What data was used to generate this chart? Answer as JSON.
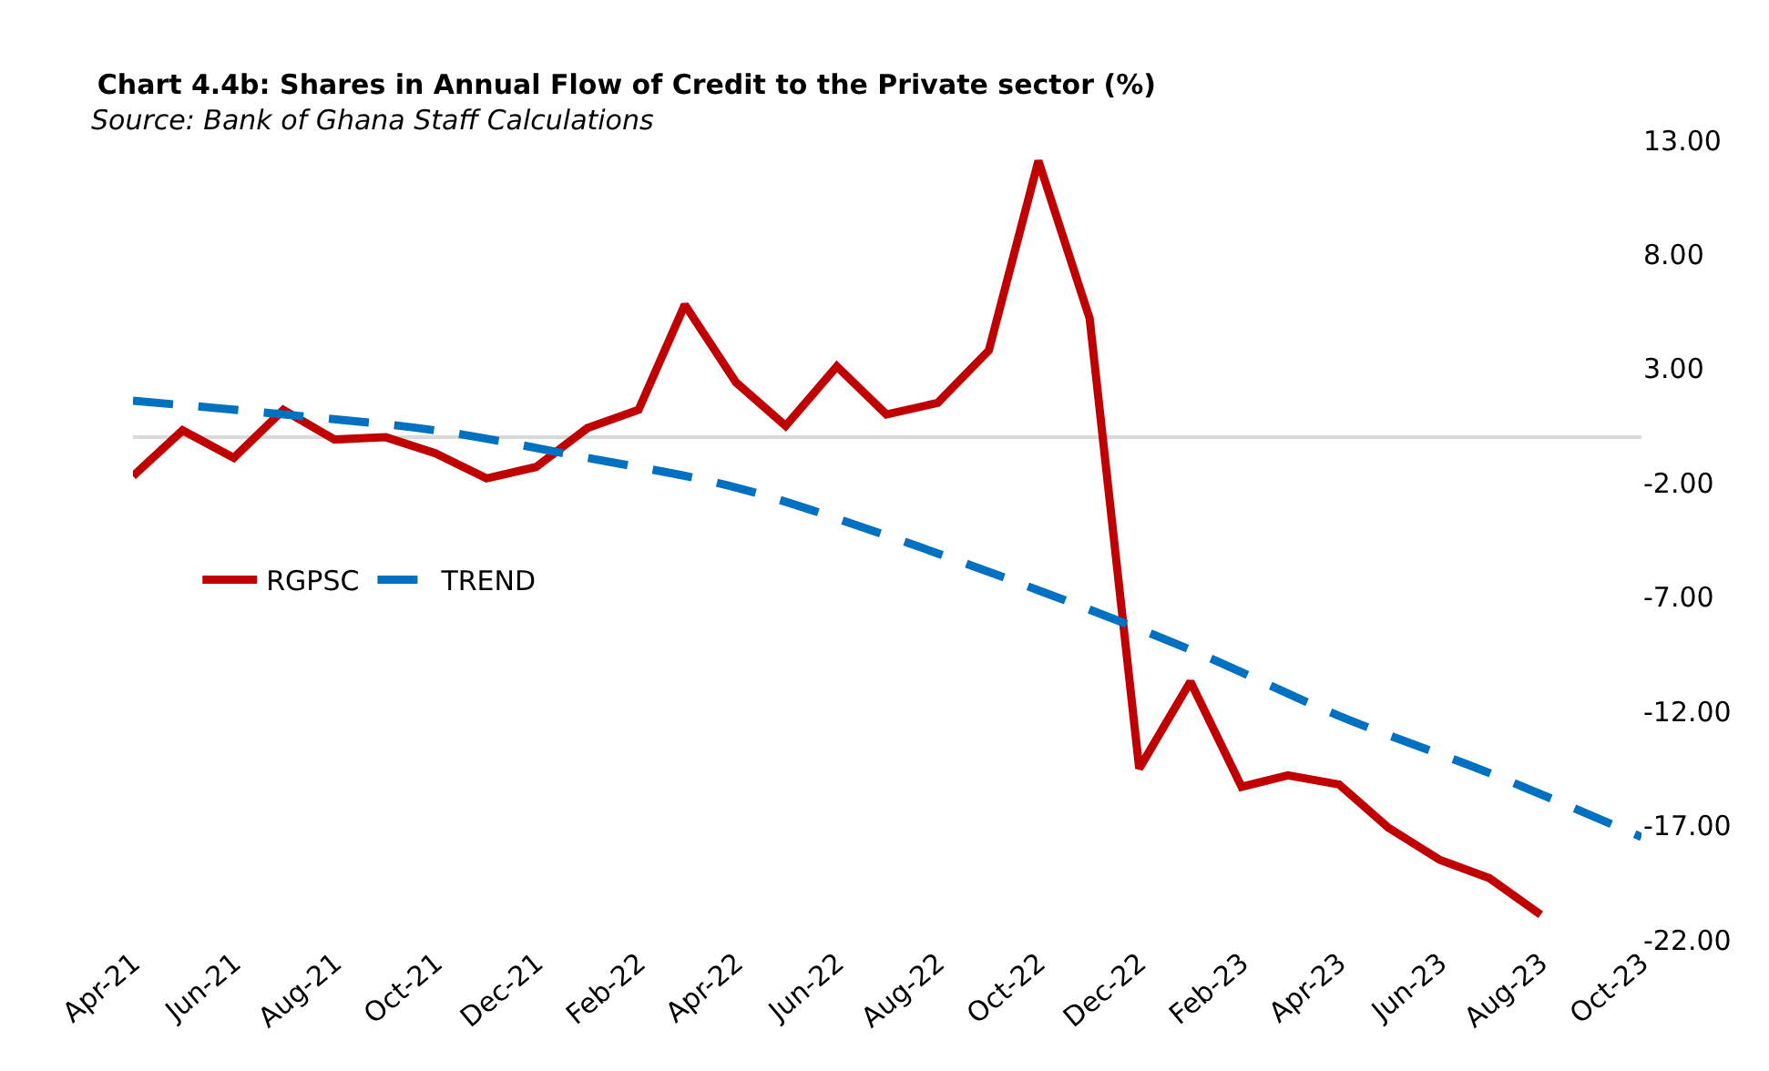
{
  "chart_data": {
    "type": "line",
    "title": "Chart 4.4b: Shares in Annual Flow of Credit to the Private sector (%)",
    "annotations": [
      "Source: Bank of Ghana Staff Calculations"
    ],
    "x": [
      "2021-04",
      "2021-05",
      "2021-06",
      "2021-07",
      "2021-08",
      "2021-09",
      "2021-10",
      "2021-11",
      "2021-12",
      "2022-01",
      "2022-02",
      "2022-03",
      "2022-04",
      "2022-05",
      "2022-06",
      "2022-07",
      "2022-08",
      "2022-09",
      "2022-10",
      "2022-11",
      "2022-12",
      "2023-01",
      "2023-02",
      "2023-03",
      "2023-04",
      "2023-05",
      "2023-06",
      "2023-07",
      "2023-08"
    ],
    "series": [
      {
        "name": "RGPSC",
        "color": "#c00000",
        "line_style": "solid",
        "values": [
          -1.7,
          0.3,
          -0.9,
          1.2,
          -0.1,
          0.0,
          -0.7,
          -1.8,
          -1.3,
          0.4,
          1.2,
          5.8,
          2.4,
          0.5,
          3.1,
          1.0,
          1.5,
          3.8,
          12.1,
          5.2,
          -14.5,
          -10.7,
          -15.3,
          -14.8,
          -15.2,
          -17.1,
          -18.5,
          -19.3,
          -20.9
        ]
      },
      {
        "name": "TREND",
        "color": "#0070c0",
        "line_style": "dashed",
        "x": [
          "2021-04",
          "2021-07",
          "2021-10",
          "2022-01",
          "2022-04",
          "2022-07",
          "2022-10",
          "2023-01",
          "2023-04",
          "2023-07",
          "2023-10"
        ],
        "values": [
          1.6,
          1.0,
          0.3,
          -0.9,
          -2.2,
          -4.3,
          -6.7,
          -9.3,
          -12.2,
          -14.7,
          -17.5
        ]
      }
    ],
    "xlim": [
      "2021-04",
      "2023-10"
    ],
    "xticks": [
      {
        "value": "2021-04",
        "label": "Apr-21"
      },
      {
        "value": "2021-06",
        "label": "Jun-21"
      },
      {
        "value": "2021-08",
        "label": "Aug-21"
      },
      {
        "value": "2021-10",
        "label": "Oct-21"
      },
      {
        "value": "2021-12",
        "label": "Dec-21"
      },
      {
        "value": "2022-02",
        "label": "Feb-22"
      },
      {
        "value": "2022-04",
        "label": "Apr-22"
      },
      {
        "value": "2022-06",
        "label": "Jun-22"
      },
      {
        "value": "2022-08",
        "label": "Aug-22"
      },
      {
        "value": "2022-10",
        "label": "Oct-22"
      },
      {
        "value": "2022-12",
        "label": "Dec-22"
      },
      {
        "value": "2023-02",
        "label": "Feb-23"
      },
      {
        "value": "2023-04",
        "label": "Apr-23"
      },
      {
        "value": "2023-06",
        "label": "Jun-23"
      },
      {
        "value": "2023-08",
        "label": "Aug-23"
      },
      {
        "value": "2023-10",
        "label": "Oct-23"
      }
    ],
    "ylim": [
      -22,
      13
    ],
    "yticks": [
      {
        "value": 13,
        "label": "13.00"
      },
      {
        "value": 8,
        "label": "8.00"
      },
      {
        "value": 3,
        "label": "3.00"
      },
      {
        "value": -2,
        "label": "-2.00"
      },
      {
        "value": -7,
        "label": "-7.00"
      },
      {
        "value": -12,
        "label": "-12.00"
      },
      {
        "value": -17,
        "label": "-17.00"
      },
      {
        "value": -22,
        "label": "-22.00"
      }
    ],
    "legend": "left",
    "marker": "none"
  }
}
